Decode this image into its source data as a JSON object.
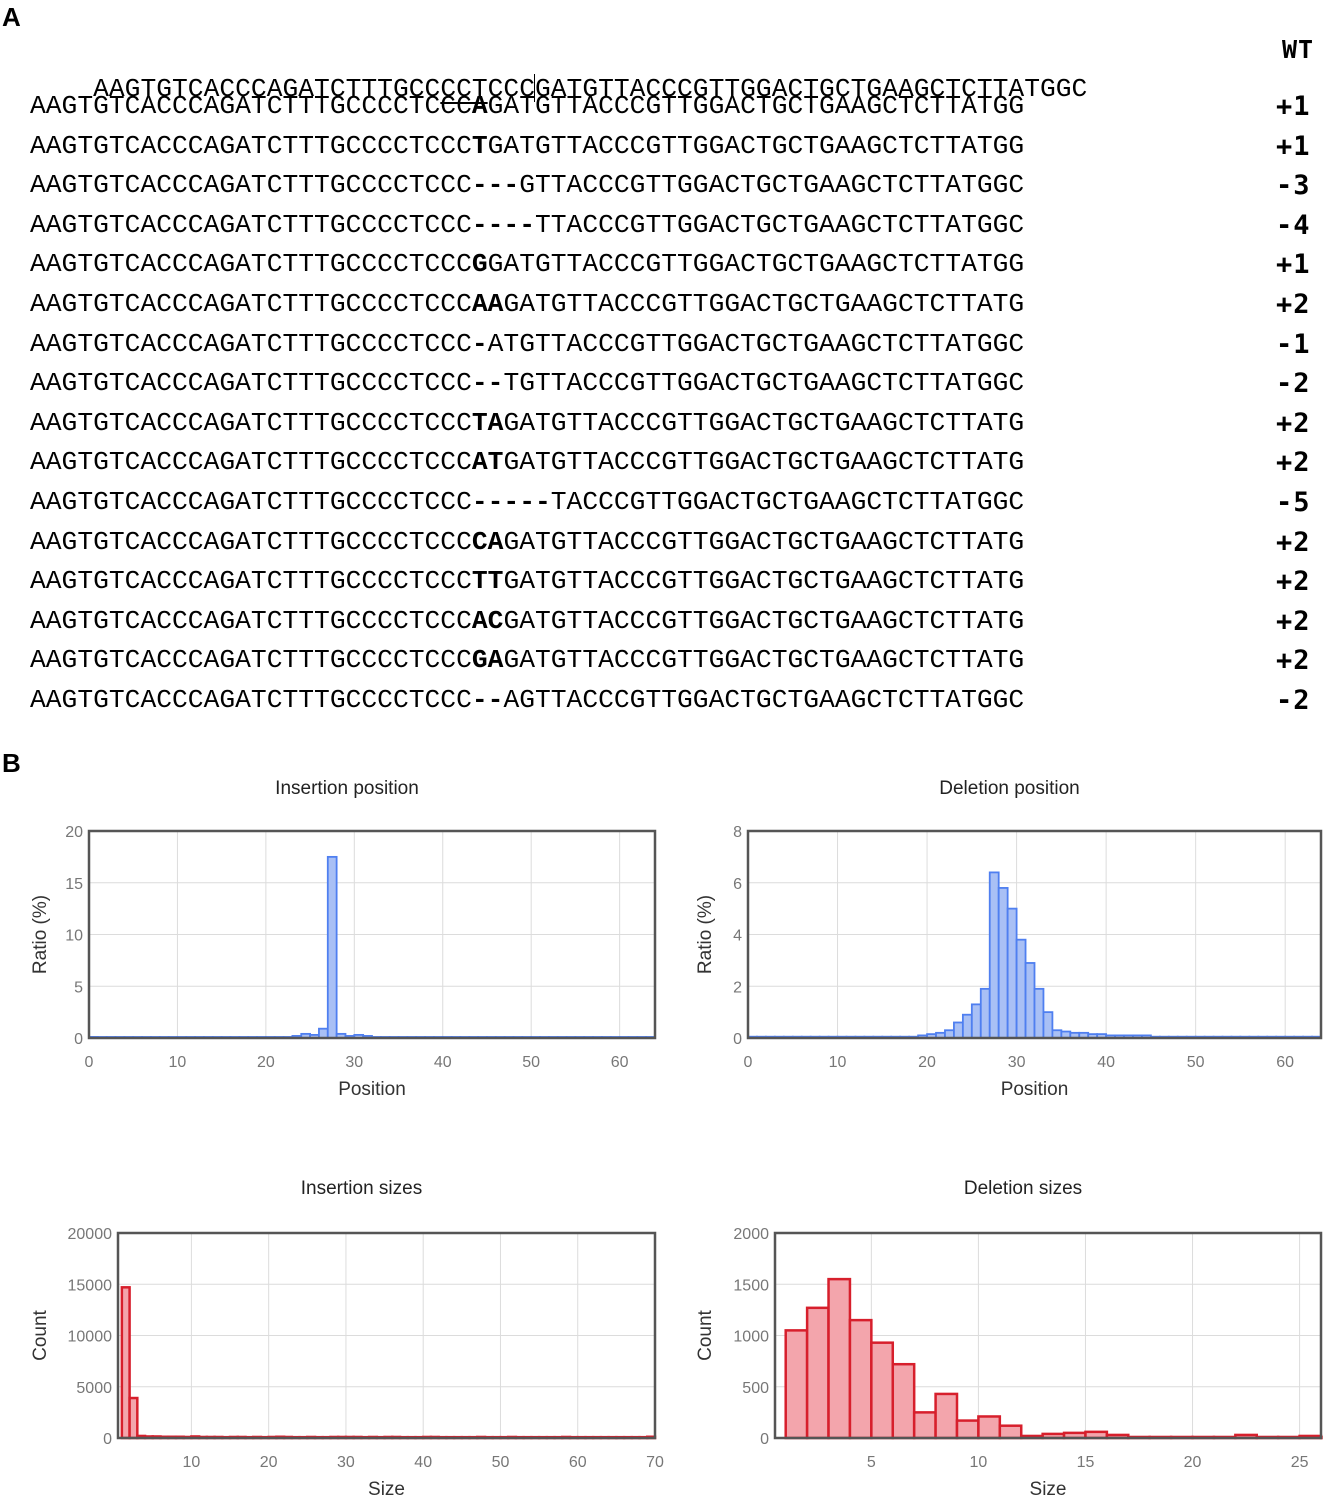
{
  "panel_labels": {
    "a": "A",
    "b": "B"
  },
  "panel_a": {
    "wild_type": {
      "prefix": "AAGTGTCACCCAGATCTTTGCC",
      "pam": "CCT",
      "mid": "CCC",
      "suffix": "GATGTTACCCGTTGGACTGCTGAAGCTCTTATGGC",
      "tag": "WT"
    },
    "alleles": [
      {
        "pre": "AAGTGTCACCCAGATCTTTGCCCCTCCC",
        "mut": "A",
        "post": "GATGTTACCCGTTGGACTGCTGAAGCTCTTATGG",
        "tag": "+1"
      },
      {
        "pre": "AAGTGTCACCCAGATCTTTGCCCCTCCC",
        "mut": "T",
        "post": "GATGTTACCCGTTGGACTGCTGAAGCTCTTATGG",
        "tag": "+1"
      },
      {
        "pre": "AAGTGTCACCCAGATCTTTGCCCCTCCC",
        "mut": "---",
        "post": "GTTACCCGTTGGACTGCTGAAGCTCTTATGGC",
        "tag": "-3"
      },
      {
        "pre": "AAGTGTCACCCAGATCTTTGCCCCTCCC",
        "mut": "----",
        "post": "TTACCCGTTGGACTGCTGAAGCTCTTATGGC",
        "tag": "-4"
      },
      {
        "pre": "AAGTGTCACCCAGATCTTTGCCCCTCCC",
        "mut": "G",
        "post": "GATGTTACCCGTTGGACTGCTGAAGCTCTTATGG",
        "tag": "+1"
      },
      {
        "pre": "AAGTGTCACCCAGATCTTTGCCCCTCCC",
        "mut": "AA",
        "post": "GATGTTACCCGTTGGACTGCTGAAGCTCTTATG",
        "tag": "+2"
      },
      {
        "pre": "AAGTGTCACCCAGATCTTTGCCCCTCCC",
        "mut": "-",
        "post": "ATGTTACCCGTTGGACTGCTGAAGCTCTTATGGC",
        "tag": "-1"
      },
      {
        "pre": "AAGTGTCACCCAGATCTTTGCCCCTCCC",
        "mut": "--",
        "post": "TGTTACCCGTTGGACTGCTGAAGCTCTTATGGC",
        "tag": "-2"
      },
      {
        "pre": "AAGTGTCACCCAGATCTTTGCCCCTCCC",
        "mut": "TA",
        "post": "GATGTTACCCGTTGGACTGCTGAAGCTCTTATG",
        "tag": "+2"
      },
      {
        "pre": "AAGTGTCACCCAGATCTTTGCCCCTCCC",
        "mut": "AT",
        "post": "GATGTTACCCGTTGGACTGCTGAAGCTCTTATG",
        "tag": "+2"
      },
      {
        "pre": "AAGTGTCACCCAGATCTTTGCCCCTCCC",
        "mut": "-----",
        "post": "TACCCGTTGGACTGCTGAAGCTCTTATGGC",
        "tag": "-5"
      },
      {
        "pre": "AAGTGTCACCCAGATCTTTGCCCCTCCC",
        "mut": "CA",
        "post": "GATGTTACCCGTTGGACTGCTGAAGCTCTTATG",
        "tag": "+2"
      },
      {
        "pre": "AAGTGTCACCCAGATCTTTGCCCCTCCC",
        "mut": "TT",
        "post": "GATGTTACCCGTTGGACTGCTGAAGCTCTTATG",
        "tag": "+2"
      },
      {
        "pre": "AAGTGTCACCCAGATCTTTGCCCCTCCC",
        "mut": "AC",
        "post": "GATGTTACCCGTTGGACTGCTGAAGCTCTTATG",
        "tag": "+2"
      },
      {
        "pre": "AAGTGTCACCCAGATCTTTGCCCCTCCC",
        "mut": "GA",
        "post": "GATGTTACCCGTTGGACTGCTGAAGCTCTTATG",
        "tag": "+2"
      },
      {
        "pre": "AAGTGTCACCCAGATCTTTGCCCCTCCC",
        "mut": "--",
        "post": "AGTTACCCGTTGGACTGCTGAAGCTCTTATGGC",
        "tag": "-2"
      }
    ]
  },
  "colors": {
    "blue_fill": "#a9c0f5",
    "blue_stroke": "#4f7ff0",
    "red_fill": "#f3a5ac",
    "red_stroke": "#d71f2c",
    "grid": "#dcdcdc",
    "axis": "#555555"
  },
  "chart_data": [
    {
      "id": "insertion-position",
      "type": "bar",
      "title": "Insertion position",
      "xlabel": "Position",
      "ylabel": "Ratio (%)",
      "xlim": [
        0,
        64
      ],
      "ylim": [
        0,
        20
      ],
      "xticks": [
        0,
        10,
        20,
        30,
        40,
        50,
        60
      ],
      "yticks": [
        0,
        5,
        10,
        15,
        20
      ],
      "color": "blue",
      "bin_width": 1,
      "x": [
        0,
        0,
        1,
        2,
        3,
        4,
        5,
        6,
        7,
        8,
        9,
        10,
        11,
        12,
        13,
        14,
        15,
        16,
        17,
        18,
        19,
        20,
        21,
        22,
        23,
        24,
        25,
        26,
        27,
        28,
        29,
        30,
        31,
        32,
        33,
        34,
        35,
        36,
        37,
        38,
        39,
        40,
        41,
        42,
        43,
        44,
        45,
        46,
        47,
        48,
        49,
        50,
        51,
        52,
        53,
        54,
        55,
        56,
        57,
        58,
        59,
        60,
        61,
        62,
        63
      ],
      "values": [
        0.1,
        0.1,
        0.1,
        0.1,
        0.1,
        0.1,
        0.1,
        0.1,
        0.1,
        0.1,
        0.1,
        0.1,
        0.1,
        0.1,
        0.1,
        0.1,
        0.1,
        0.1,
        0.1,
        0.1,
        0.1,
        0.1,
        0.1,
        0.1,
        0.2,
        0.4,
        0.3,
        0.9,
        17.5,
        0.4,
        0.2,
        0.3,
        0.2,
        0.1,
        0.1,
        0.1,
        0.1,
        0.1,
        0.1,
        0.1,
        0.1,
        0.1,
        0.1,
        0.1,
        0.1,
        0.1,
        0.1,
        0.1,
        0.1,
        0.1,
        0.1,
        0.1,
        0.1,
        0.1,
        0.1,
        0.1,
        0.1,
        0.1,
        0.1,
        0.1,
        0.1,
        0.1,
        0.1,
        0.1,
        0.1
      ]
    },
    {
      "id": "deletion-position",
      "type": "bar",
      "title": "Deletion position",
      "xlabel": "Position",
      "ylabel": "Ratio (%)",
      "xlim": [
        0,
        64
      ],
      "ylim": [
        0,
        8
      ],
      "xticks": [
        0,
        10,
        20,
        30,
        40,
        50,
        60
      ],
      "yticks": [
        0,
        2,
        4,
        6,
        8
      ],
      "color": "blue",
      "bin_width": 1,
      "x": [
        0,
        1,
        2,
        3,
        4,
        5,
        6,
        7,
        8,
        9,
        10,
        11,
        12,
        13,
        14,
        15,
        16,
        17,
        18,
        19,
        20,
        21,
        22,
        23,
        24,
        25,
        26,
        27,
        28,
        29,
        30,
        31,
        32,
        33,
        34,
        35,
        36,
        37,
        38,
        39,
        40,
        41,
        42,
        43,
        44,
        45,
        46,
        47,
        48,
        49,
        50,
        51,
        52,
        53,
        54,
        55,
        56,
        57,
        58,
        59,
        60,
        61,
        62,
        63
      ],
      "values": [
        0.05,
        0.05,
        0.05,
        0.05,
        0.05,
        0.05,
        0.05,
        0.05,
        0.05,
        0.05,
        0.05,
        0.05,
        0.05,
        0.05,
        0.05,
        0.05,
        0.05,
        0.05,
        0.05,
        0.1,
        0.15,
        0.2,
        0.3,
        0.6,
        0.9,
        1.3,
        1.9,
        6.4,
        5.8,
        5.0,
        3.8,
        2.9,
        1.9,
        1.0,
        0.3,
        0.25,
        0.2,
        0.2,
        0.15,
        0.15,
        0.1,
        0.1,
        0.1,
        0.1,
        0.1,
        0.05,
        0.05,
        0.05,
        0.05,
        0.05,
        0.05,
        0.05,
        0.05,
        0.05,
        0.05,
        0.05,
        0.05,
        0.05,
        0.05,
        0.05,
        0.05,
        0.05,
        0.05,
        0.05
      ]
    },
    {
      "id": "insertion-sizes",
      "type": "bar",
      "title": "Insertion sizes",
      "xlabel": "Size",
      "ylabel": "Count",
      "xlim": [
        0.5,
        70
      ],
      "ylim": [
        0,
        20000
      ],
      "xticks": [
        10,
        20,
        30,
        40,
        50,
        60,
        70
      ],
      "yticks": [
        0,
        5000,
        10000,
        15000,
        20000
      ],
      "color": "red",
      "bin_width": 1,
      "x": [
        1,
        2,
        3,
        4,
        5,
        6,
        7,
        8,
        9,
        10,
        11,
        12,
        13,
        14,
        15,
        16,
        17,
        18,
        19,
        20,
        21,
        22,
        23,
        24,
        25,
        26,
        27,
        28,
        29,
        30,
        31,
        32,
        33,
        34,
        35,
        36,
        37,
        38,
        39,
        40,
        41,
        42,
        43,
        44,
        45,
        46,
        47,
        48,
        49,
        50,
        51,
        52,
        53,
        54,
        55,
        56,
        57,
        58,
        59,
        60,
        61,
        62,
        63,
        64,
        65,
        66,
        67,
        68,
        69
      ],
      "values": [
        14700,
        3900,
        200,
        150,
        150,
        120,
        120,
        120,
        100,
        150,
        100,
        100,
        100,
        80,
        100,
        100,
        80,
        100,
        80,
        100,
        120,
        100,
        80,
        80,
        100,
        80,
        80,
        100,
        100,
        100,
        100,
        80,
        100,
        80,
        100,
        100,
        80,
        80,
        80,
        100,
        100,
        80,
        80,
        80,
        80,
        80,
        100,
        80,
        80,
        80,
        100,
        80,
        80,
        80,
        80,
        80,
        80,
        100,
        80,
        80,
        80,
        80,
        80,
        80,
        80,
        80,
        80,
        80,
        120
      ]
    },
    {
      "id": "deletion-sizes",
      "type": "bar",
      "title": "Deletion sizes",
      "xlabel": "Size",
      "ylabel": "Count",
      "xlim": [
        0.5,
        26
      ],
      "ylim": [
        0,
        2000
      ],
      "xticks": [
        5,
        10,
        15,
        20,
        25
      ],
      "yticks": [
        0,
        500,
        1000,
        1500,
        2000
      ],
      "color": "red",
      "bin_width": 1,
      "x": [
        1,
        2,
        3,
        4,
        5,
        6,
        7,
        8,
        9,
        10,
        11,
        12,
        13,
        14,
        15,
        16,
        17,
        18,
        19,
        20,
        21,
        22,
        23,
        24,
        25,
        26
      ],
      "values": [
        1050,
        1270,
        1550,
        1150,
        930,
        720,
        250,
        430,
        170,
        210,
        120,
        20,
        40,
        50,
        60,
        30,
        10,
        10,
        10,
        10,
        10,
        30,
        10,
        10,
        20,
        10
      ]
    }
  ]
}
